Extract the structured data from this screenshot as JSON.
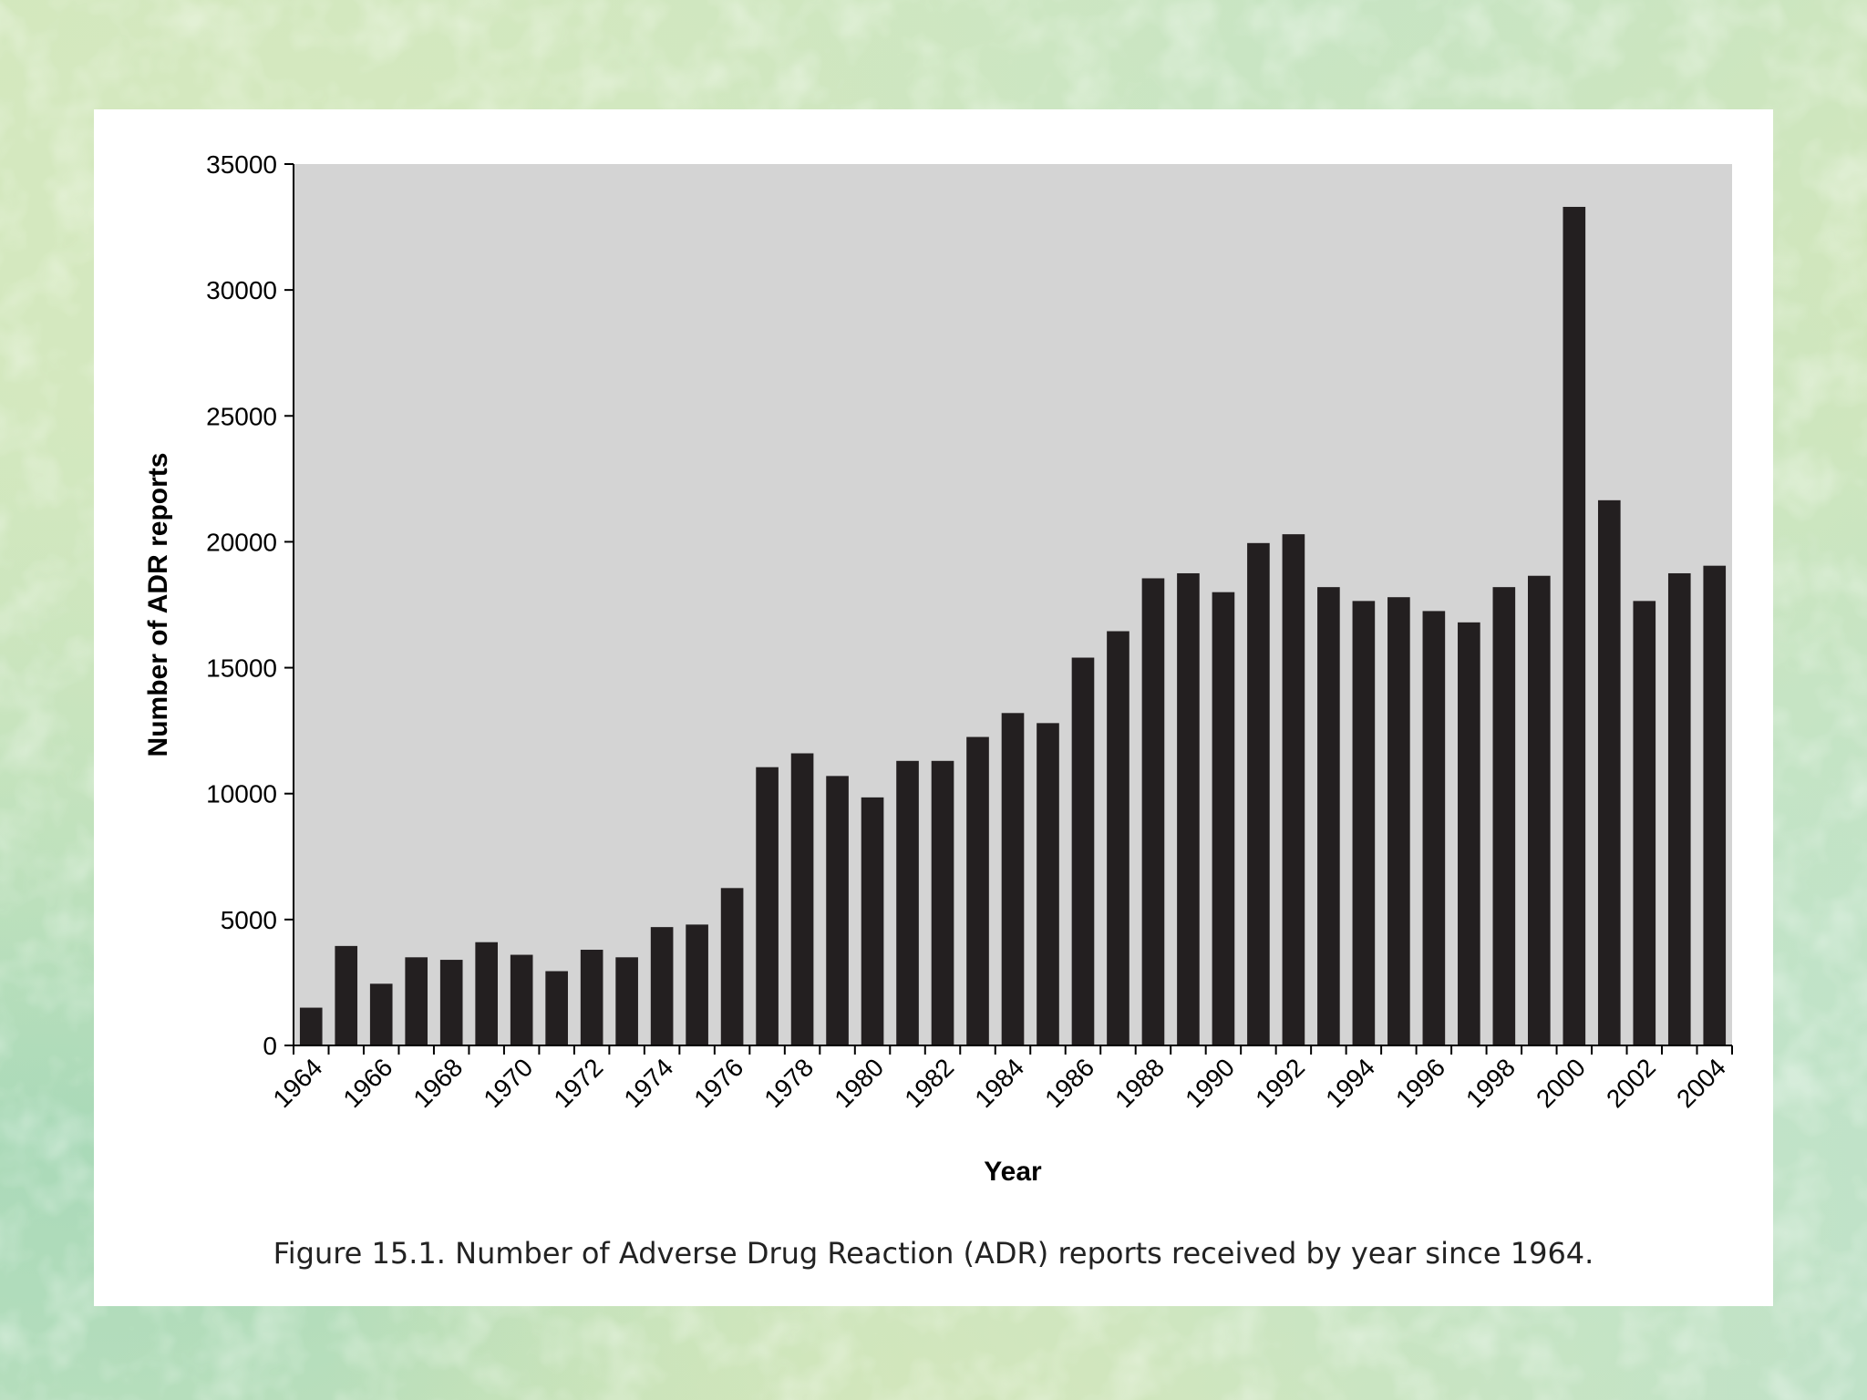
{
  "caption": "Figure 15.1.  Number of Adverse Drug Reaction (ADR) reports received by year since 1964.",
  "colors": {
    "plot_background": "#d4d4d4",
    "bar": "#231f20",
    "axis": "#000000"
  },
  "chart_data": {
    "type": "bar",
    "title": "",
    "xlabel": "Year",
    "ylabel": "Number of ADR reports",
    "ylim": [
      0,
      35000
    ],
    "yticks": [
      0,
      5000,
      10000,
      15000,
      20000,
      25000,
      30000,
      35000
    ],
    "xtick_labels": [
      "1964",
      "1966",
      "1968",
      "1970",
      "1972",
      "1974",
      "1976",
      "1978",
      "1980",
      "1982",
      "1984",
      "1986",
      "1988",
      "1990",
      "1992",
      "1994",
      "1996",
      "1998",
      "2000",
      "2002",
      "2004"
    ],
    "categories": [
      "1964",
      "1965",
      "1966",
      "1967",
      "1968",
      "1969",
      "1970",
      "1971",
      "1972",
      "1973",
      "1974",
      "1975",
      "1976",
      "1977",
      "1978",
      "1979",
      "1980",
      "1981",
      "1982",
      "1983",
      "1984",
      "1985",
      "1986",
      "1987",
      "1988",
      "1989",
      "1990",
      "1991",
      "1992",
      "1993",
      "1994",
      "1995",
      "1996",
      "1997",
      "1998",
      "1999",
      "2000",
      "2001",
      "2002",
      "2003",
      "2004"
    ],
    "values": [
      1500,
      3950,
      2450,
      3500,
      3400,
      4100,
      3600,
      2950,
      3800,
      3500,
      4700,
      4800,
      6250,
      11050,
      11600,
      10700,
      9850,
      11300,
      11300,
      12250,
      13200,
      12800,
      15400,
      16450,
      18550,
      18750,
      18000,
      19950,
      20300,
      18200,
      17650,
      17800,
      17250,
      16800,
      18200,
      18650,
      33300,
      21650,
      17650,
      18750,
      19050
    ],
    "grid": false,
    "legend": "none"
  }
}
